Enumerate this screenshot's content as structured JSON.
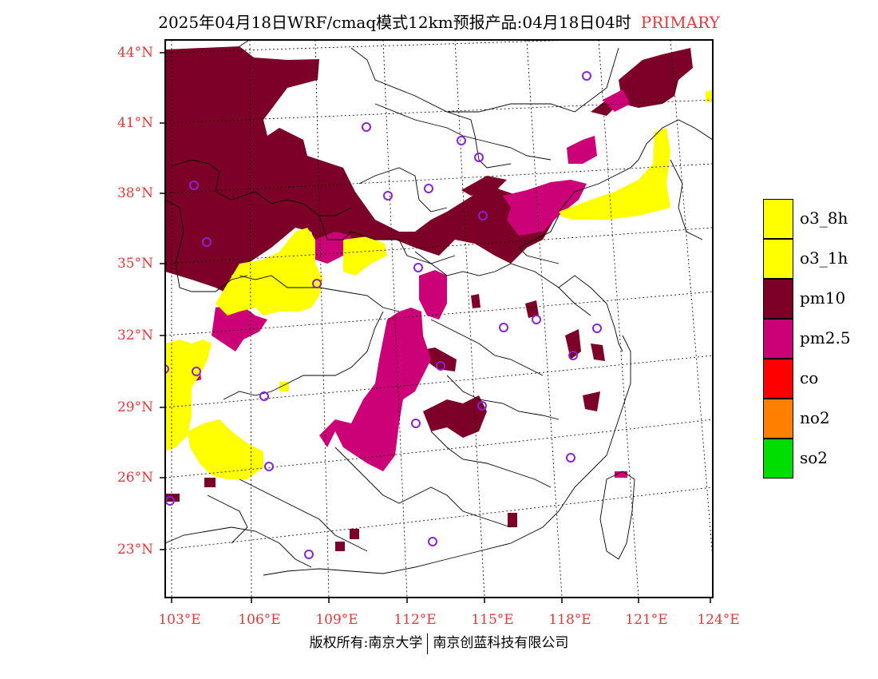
{
  "title": {
    "main": "2025年04月18日WRF/cmaq模式12km预报产品:04月18日04时",
    "tag": "PRIMARY"
  },
  "lat_labels": [
    "44°N",
    "41°N",
    "38°N",
    "35°N",
    "32°N",
    "29°N",
    "26°N",
    "23°N"
  ],
  "lon_labels": [
    "103°E",
    "106°E",
    "109°E",
    "112°E",
    "115°E",
    "118°E",
    "121°E",
    "124°E"
  ],
  "legend": [
    {
      "name": "o3_8h",
      "color": "#ffff00"
    },
    {
      "name": "o3_1h",
      "color": "#ffff00"
    },
    {
      "name": "pm10",
      "color": "#7d0028"
    },
    {
      "name": "pm2.5",
      "color": "#cc0077"
    },
    {
      "name": "co",
      "color": "#ff0000"
    },
    {
      "name": "no2",
      "color": "#ff8000"
    },
    {
      "name": "so2",
      "color": "#00dd00"
    }
  ],
  "copyright": {
    "left": "版权所有:南京大学",
    "right": "南京创蓝科技有限公司"
  }
}
